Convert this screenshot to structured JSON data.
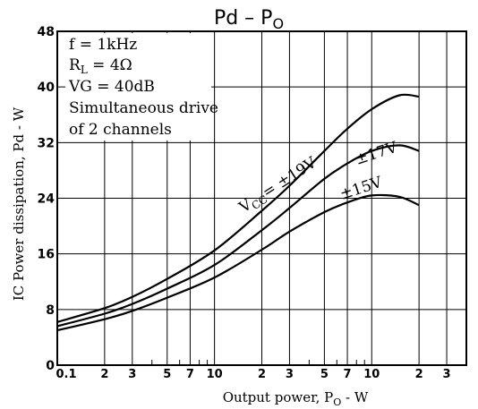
{
  "chart_data": {
    "type": "line",
    "title": "Pd  –  P",
    "title_sub": "O",
    "xlabel": "Output power, P",
    "xlabel_sub": "O",
    "xlabel_suffix": " - W",
    "ylabel": "IC Power dissipation, Pd - W",
    "x_scale": "log",
    "xlim": [
      0.1,
      40
    ],
    "ylim": [
      0,
      48
    ],
    "grid": true,
    "y_ticks": [
      "0",
      "8",
      "16",
      "24",
      "32",
      "40",
      "48"
    ],
    "x_ticks": [
      "0.1",
      "2",
      "3",
      "5",
      "7",
      "10",
      "2",
      "3",
      "5",
      "7",
      "10",
      "2",
      "3"
    ],
    "annotations": {
      "line1": "f = 1kHz",
      "line2a": "R",
      "line2sub": "L",
      "line2b": " = 4Ω",
      "line3": "VG = 40dB",
      "line4": "Simultaneous drive",
      "line5": "of 2 channels"
    },
    "series_labels": {
      "vcc_prefix": "V",
      "vcc_sub": "CC",
      "vcc_value": "= ±19V",
      "s17": "±17V",
      "s15": "±15V"
    },
    "series": [
      {
        "name": "±19V",
        "x": [
          0.1,
          0.2,
          0.3,
          0.5,
          1,
          2,
          3,
          5,
          7,
          10,
          15,
          20
        ],
        "y": [
          6.2,
          8.2,
          9.8,
          12.4,
          16.5,
          22.2,
          25.8,
          30.8,
          34.0,
          36.8,
          38.8,
          38.6
        ]
      },
      {
        "name": "±17V",
        "x": [
          0.1,
          0.2,
          0.3,
          0.5,
          1,
          2,
          3,
          5,
          7,
          10,
          15,
          20
        ],
        "y": [
          5.6,
          7.4,
          8.8,
          11.0,
          14.4,
          19.4,
          22.6,
          26.8,
          29.0,
          30.8,
          31.6,
          30.8
        ]
      },
      {
        "name": "±15V",
        "x": [
          0.1,
          0.2,
          0.3,
          0.5,
          1,
          2,
          3,
          5,
          7,
          10,
          15,
          20
        ],
        "y": [
          5.0,
          6.6,
          7.8,
          9.7,
          12.6,
          16.6,
          19.2,
          22.0,
          23.4,
          24.4,
          24.2,
          23.0
        ]
      }
    ]
  }
}
